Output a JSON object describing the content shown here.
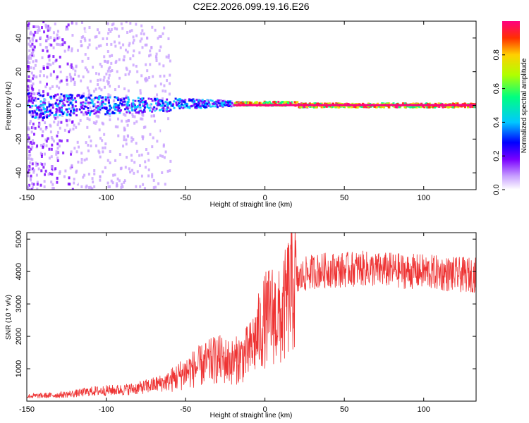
{
  "chart_data": [
    {
      "type": "heatmap",
      "title": "C2E2.2026.099.19.16.E26",
      "xlabel": "Height of straight line (km)",
      "ylabel": "Frequency (Hz)",
      "xlim": [
        -150,
        133
      ],
      "ylim": [
        -50,
        50
      ],
      "xticks": [
        -150,
        -100,
        -50,
        0,
        50,
        100
      ],
      "yticks": [
        -40,
        -20,
        0,
        20,
        40
      ],
      "colorbar": {
        "label": "Normalized spectral amplitude",
        "range": [
          0,
          1
        ],
        "ticks": [
          "0.0",
          "0.2",
          "0.4",
          "0.6",
          "0.8"
        ],
        "colors": [
          "#ffffff",
          "#c8a0ff",
          "#7a00ff",
          "#0000ff",
          "#00c8ff",
          "#00ff80",
          "#b0ff00",
          "#ffd000",
          "#ff3000",
          "#ff0080"
        ]
      }
    },
    {
      "type": "line",
      "xlabel": "Height of straight line (km)",
      "ylabel": "SNR (10 * v/v)",
      "xlim": [
        -150,
        133
      ],
      "ylim": [
        0,
        5200
      ],
      "xticks": [
        -150,
        -100,
        -50,
        0,
        50,
        100
      ],
      "yticks": [
        1000,
        2000,
        3000,
        4000,
        5000
      ],
      "series": [
        {
          "name": "SNR",
          "color": "#ee3333",
          "x": [
            -150,
            -140,
            -130,
            -120,
            -110,
            -100,
            -90,
            -80,
            -70,
            -60,
            -50,
            -40,
            -30,
            -20,
            -10,
            0,
            5,
            10,
            15,
            20,
            25,
            30,
            40,
            50,
            60,
            70,
            80,
            90,
            100,
            110,
            120,
            133
          ],
          "y": [
            150,
            170,
            190,
            230,
            300,
            330,
            350,
            400,
            500,
            620,
            900,
            1100,
            1300,
            1200,
            1500,
            2500,
            2700,
            2500,
            3300,
            3700,
            3900,
            4000,
            4050,
            4050,
            4100,
            4050,
            4050,
            4000,
            4000,
            3950,
            3900,
            3900
          ]
        }
      ]
    }
  ]
}
